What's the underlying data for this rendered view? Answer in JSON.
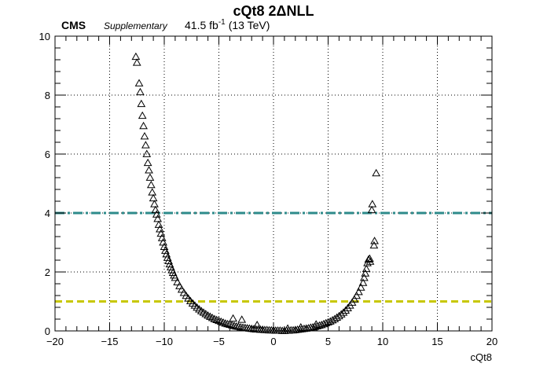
{
  "chart_data": {
    "type": "scatter",
    "title": "cQt8 2ΔNLL",
    "experiment": "CMS",
    "tag": "Supplementary",
    "lumi_value": "41.5 fb",
    "lumi_exponent": "-1",
    "energy": "(13 TeV)",
    "xlabel": "cQt8",
    "ylabel": "",
    "xlim": [
      -20,
      20
    ],
    "ylim": [
      0,
      10
    ],
    "x_ticks": [
      -20,
      -15,
      -10,
      -5,
      0,
      5,
      10,
      15,
      20
    ],
    "y_ticks": [
      0,
      2,
      4,
      6,
      8,
      10
    ],
    "x_tick_labels": [
      "−20",
      "−15",
      "−10",
      "−5",
      "0",
      "5",
      "10",
      "15",
      "20"
    ],
    "y_tick_labels": [
      "0",
      "2",
      "4",
      "6",
      "8",
      "10"
    ],
    "grid": true,
    "marker": "open-triangle",
    "reference_lines": [
      {
        "y": 4,
        "color": "#2e8b8b",
        "style": "dash-dot"
      },
      {
        "y": 1,
        "color": "#c8c800",
        "style": "dashed"
      }
    ],
    "points": [
      [
        -12.6,
        9.3
      ],
      [
        -12.5,
        9.1
      ],
      [
        -12.3,
        8.4
      ],
      [
        -12.2,
        8.1
      ],
      [
        -12.1,
        7.7
      ],
      [
        -12.0,
        7.3
      ],
      [
        -11.9,
        6.95
      ],
      [
        -11.8,
        6.6
      ],
      [
        -11.7,
        6.3
      ],
      [
        -11.6,
        6.0
      ],
      [
        -11.5,
        5.7
      ],
      [
        -11.4,
        5.45
      ],
      [
        -11.3,
        5.2
      ],
      [
        -11.2,
        4.95
      ],
      [
        -11.1,
        4.7
      ],
      [
        -11.0,
        4.5
      ],
      [
        -10.9,
        4.3
      ],
      [
        -10.8,
        4.1
      ],
      [
        -10.7,
        3.95
      ],
      [
        -10.6,
        3.8
      ],
      [
        -10.5,
        3.6
      ],
      [
        -10.4,
        3.45
      ],
      [
        -10.3,
        3.3
      ],
      [
        -10.2,
        3.15
      ],
      [
        -10.1,
        3.0
      ],
      [
        -10.0,
        2.85
      ],
      [
        -9.9,
        2.72
      ],
      [
        -9.8,
        2.6
      ],
      [
        -9.7,
        2.48
      ],
      [
        -9.6,
        2.37
      ],
      [
        -9.5,
        2.26
      ],
      [
        -9.4,
        2.16
      ],
      [
        -9.3,
        2.06
      ],
      [
        -9.2,
        1.97
      ],
      [
        -9.1,
        1.88
      ],
      [
        -9.0,
        1.8
      ],
      [
        -8.8,
        1.65
      ],
      [
        -8.6,
        1.52
      ],
      [
        -8.4,
        1.4
      ],
      [
        -8.2,
        1.29
      ],
      [
        -8.0,
        1.19
      ],
      [
        -7.8,
        1.1
      ],
      [
        -7.6,
        1.01
      ],
      [
        -7.4,
        0.93
      ],
      [
        -7.2,
        0.86
      ],
      [
        -7.0,
        0.79
      ],
      [
        -6.8,
        0.73
      ],
      [
        -6.6,
        0.67
      ],
      [
        -6.4,
        0.62
      ],
      [
        -6.2,
        0.57
      ],
      [
        -6.0,
        0.52
      ],
      [
        -5.8,
        0.48
      ],
      [
        -5.6,
        0.44
      ],
      [
        -5.4,
        0.4
      ],
      [
        -5.2,
        0.37
      ],
      [
        -5.0,
        0.34
      ],
      [
        -4.8,
        0.31
      ],
      [
        -4.6,
        0.28
      ],
      [
        -4.4,
        0.25
      ],
      [
        -4.2,
        0.23
      ],
      [
        -4.0,
        0.21
      ],
      [
        -3.8,
        0.19
      ],
      [
        -3.6,
        0.17
      ],
      [
        -3.4,
        0.15
      ],
      [
        -3.2,
        0.14
      ],
      [
        -3.0,
        0.12
      ],
      [
        -2.8,
        0.11
      ],
      [
        -2.6,
        0.1
      ],
      [
        -2.4,
        0.09
      ],
      [
        -2.2,
        0.08
      ],
      [
        -2.0,
        0.07
      ],
      [
        -1.8,
        0.06
      ],
      [
        -1.6,
        0.05
      ],
      [
        -1.4,
        0.05
      ],
      [
        -1.2,
        0.04
      ],
      [
        -1.0,
        0.04
      ],
      [
        -0.8,
        0.03
      ],
      [
        -0.6,
        0.03
      ],
      [
        -0.4,
        0.02
      ],
      [
        -0.2,
        0.02
      ],
      [
        0.0,
        0.02
      ],
      [
        0.2,
        0.01
      ],
      [
        0.4,
        0.01
      ],
      [
        0.6,
        0.01
      ],
      [
        0.8,
        0.0
      ],
      [
        1.0,
        0.0
      ],
      [
        1.2,
        0.01
      ],
      [
        1.4,
        0.01
      ],
      [
        1.6,
        0.02
      ],
      [
        1.8,
        0.02
      ],
      [
        2.0,
        0.03
      ],
      [
        2.2,
        0.04
      ],
      [
        2.4,
        0.05
      ],
      [
        2.6,
        0.06
      ],
      [
        2.8,
        0.07
      ],
      [
        3.0,
        0.08
      ],
      [
        3.2,
        0.09
      ],
      [
        3.4,
        0.11
      ],
      [
        3.6,
        0.12
      ],
      [
        3.8,
        0.14
      ],
      [
        4.0,
        0.16
      ],
      [
        4.2,
        0.18
      ],
      [
        4.4,
        0.2
      ],
      [
        4.6,
        0.23
      ],
      [
        4.8,
        0.26
      ],
      [
        5.0,
        0.29
      ],
      [
        5.2,
        0.32
      ],
      [
        5.4,
        0.36
      ],
      [
        5.6,
        0.4
      ],
      [
        5.8,
        0.45
      ],
      [
        6.0,
        0.5
      ],
      [
        6.2,
        0.56
      ],
      [
        6.4,
        0.62
      ],
      [
        6.6,
        0.69
      ],
      [
        6.8,
        0.77
      ],
      [
        7.0,
        0.86
      ],
      [
        7.2,
        0.96
      ],
      [
        7.4,
        1.07
      ],
      [
        7.6,
        1.19
      ],
      [
        7.8,
        1.32
      ],
      [
        8.0,
        1.47
      ],
      [
        8.2,
        1.63
      ],
      [
        8.3,
        1.8
      ],
      [
        8.4,
        1.95
      ],
      [
        8.5,
        2.1
      ],
      [
        8.6,
        2.3
      ],
      [
        8.7,
        2.42
      ],
      [
        8.8,
        2.45
      ],
      [
        8.85,
        2.35
      ],
      [
        9.2,
        2.9
      ],
      [
        9.25,
        3.05
      ],
      [
        9.0,
        4.1
      ],
      [
        9.05,
        4.3
      ],
      [
        9.4,
        5.35
      ],
      [
        -3.7,
        0.42
      ],
      [
        -2.9,
        0.38
      ],
      [
        -1.5,
        0.2
      ],
      [
        2.5,
        0.12
      ],
      [
        1.3,
        0.08
      ],
      [
        3.9,
        0.22
      ]
    ]
  }
}
